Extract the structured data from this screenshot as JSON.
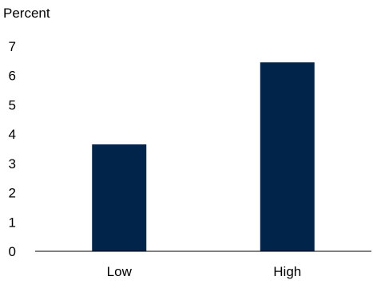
{
  "chart_data": {
    "type": "bar",
    "categories": [
      "Low",
      "High"
    ],
    "values": [
      3.65,
      6.45
    ],
    "ylabel": "Percent",
    "ylim": [
      0,
      7
    ],
    "yticks": [
      0,
      1,
      2,
      3,
      4,
      5,
      6,
      7
    ],
    "grid": false,
    "bar_color": "#00244a",
    "axis_color": "#000000"
  }
}
